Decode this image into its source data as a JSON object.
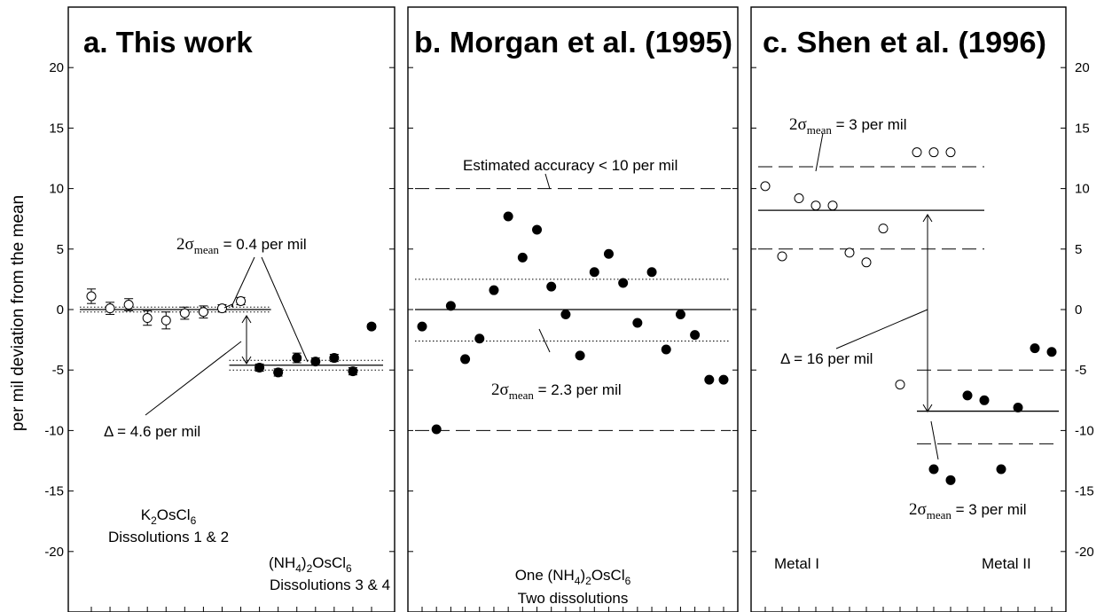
{
  "chart_data": {
    "type": "scatter",
    "ylabel": "per mil deviation from the mean",
    "ylim": [
      -25,
      25
    ],
    "y_ticks": [
      -20,
      -15,
      -10,
      -5,
      0,
      5,
      10,
      15,
      20
    ],
    "y_tick_labels": [
      "-20",
      "-15",
      "-10",
      "-5",
      "0",
      "5",
      "10",
      "15",
      "20"
    ],
    "panels": [
      {
        "title": "a. This work",
        "x_count": 16,
        "series": [
          {
            "marker": "open-circle",
            "x": [
              1,
              2,
              3,
              4,
              5,
              6,
              7,
              8,
              9
            ],
            "y": [
              1.1,
              0.1,
              0.4,
              -0.7,
              -0.9,
              -0.3,
              -0.2,
              0.1,
              0.7
            ],
            "err": [
              0.6,
              0.5,
              0.5,
              0.6,
              0.7,
              0.5,
              0.5,
              0.3,
              0.3
            ]
          },
          {
            "marker": "filled-circle",
            "x": [
              10,
              11,
              12,
              13,
              14,
              15,
              16
            ],
            "y": [
              -4.8,
              -5.2,
              -4.0,
              -4.3,
              -4.0,
              -5.1,
              -1.4
            ],
            "err": [
              0.3,
              0.3,
              0.4,
              0.3,
              0.3,
              0.3,
              0.2
            ]
          }
        ],
        "mean_lines": [
          {
            "x": [
              1,
              10
            ],
            "y": 0,
            "style": "solid"
          },
          {
            "x": [
              1,
              10
            ],
            "y": 0.2,
            "style": "dotted"
          },
          {
            "x": [
              1,
              10
            ],
            "y": -0.2,
            "style": "dotted"
          },
          {
            "x": [
              9,
              16
            ],
            "y": -4.6,
            "style": "solid"
          },
          {
            "x": [
              9,
              16
            ],
            "y": -4.2,
            "style": "dotted"
          },
          {
            "x": [
              9,
              16
            ],
            "y": -5.0,
            "style": "dotted"
          }
        ],
        "annotations": {
          "sigma_prefix": "2σ",
          "sigma_sub": "mean",
          "sigma_suffix": " = 0.4 per mil",
          "delta": "Δ = 4.6 per mil",
          "label1_pre": "K",
          "label1_sub1": "2",
          "label1_mid": "OsCl",
          "label1_sub2": "6",
          "label1_line2": "Dissolutions 1 & 2",
          "label2_pre": "(NH",
          "label2_sub1": "4",
          "label2_mid": ")",
          "label2_sub2": "2",
          "label2_mid2": "OsCl",
          "label2_sub3": "6",
          "label2_line2": "Dissolutions 3 & 4"
        }
      },
      {
        "title": "b. Morgan et al. (1995)",
        "x_count": 22,
        "series": [
          {
            "marker": "filled-circle",
            "x": [
              1,
              2,
              3,
              4,
              5,
              6,
              7,
              8,
              9,
              10,
              11,
              12,
              13,
              14,
              15,
              16,
              17,
              18,
              19,
              20,
              21,
              22
            ],
            "y": [
              -1.4,
              -9.9,
              0.3,
              -4.1,
              -2.4,
              1.6,
              7.7,
              4.3,
              6.6,
              1.9,
              -0.4,
              -3.8,
              3.1,
              4.6,
              2.2,
              -1.1,
              3.1,
              -3.3,
              -0.4,
              -2.1,
              -5.8,
              -5.8
            ]
          }
        ],
        "mean_lines": [
          {
            "y": 10,
            "style": "dashed"
          },
          {
            "y": -10,
            "style": "dashed"
          },
          {
            "y": 0,
            "style": "solid"
          },
          {
            "y": 2.5,
            "style": "dotted"
          },
          {
            "y": -2.6,
            "style": "dotted"
          }
        ],
        "annotations": {
          "accuracy": "Estimated accuracy < 10 per mil",
          "sigma_prefix": "2σ",
          "sigma_sub": "mean",
          "sigma_suffix": " = 2.3 per mil",
          "label_pre": "One (NH",
          "label_sub1": "4",
          "label_mid": ")",
          "label_sub2": "2",
          "label_mid2": "OsCl",
          "label_sub3": "6",
          "label_line2": "Two dissolutions"
        }
      },
      {
        "title": "c. Shen et al. (1996)",
        "x_count": 18,
        "series": [
          {
            "name": "Metal I",
            "marker": "open-circle",
            "x": [
              1,
              2,
              3,
              4,
              5,
              6,
              7,
              8,
              9,
              10,
              11,
              12
            ],
            "y": [
              10.2,
              4.4,
              9.2,
              8.6,
              8.6,
              4.7,
              3.9,
              6.7,
              -6.2,
              13.0,
              13.0,
              13.0
            ]
          },
          {
            "name": "Metal II",
            "marker": "filled-circle",
            "x": [
              11,
              12,
              13,
              14,
              15,
              16,
              17,
              18
            ],
            "y": [
              -13.2,
              -14.1,
              -7.1,
              -7.5,
              -13.2,
              -8.1,
              -3.2,
              -3.5
            ]
          }
        ],
        "mean_lines": [
          {
            "x": [
              0,
              14
            ],
            "y": 11.8,
            "style": "dashed"
          },
          {
            "x": [
              0,
              14
            ],
            "y": 8.2,
            "style": "solid"
          },
          {
            "x": [
              0,
              14
            ],
            "y": 5.0,
            "style": "dashed"
          },
          {
            "x": [
              10,
              22
            ],
            "y": -5.0,
            "style": "dashed"
          },
          {
            "x": [
              10,
              22
            ],
            "y": -8.4,
            "style": "solid"
          },
          {
            "x": [
              10,
              22
            ],
            "y": -11.1,
            "style": "dashed"
          }
        ],
        "annotations": {
          "sigma_top_prefix": "2σ",
          "sigma_top_sub": "mean",
          "sigma_top_suffix": " = 3 per mil",
          "delta": "Δ = 16 per mil",
          "sigma_bot_prefix": "2σ",
          "sigma_bot_sub": "mean",
          "sigma_bot_suffix": " = 3 per mil",
          "metal1": "Metal I",
          "metal2": "Metal II"
        }
      }
    ]
  }
}
